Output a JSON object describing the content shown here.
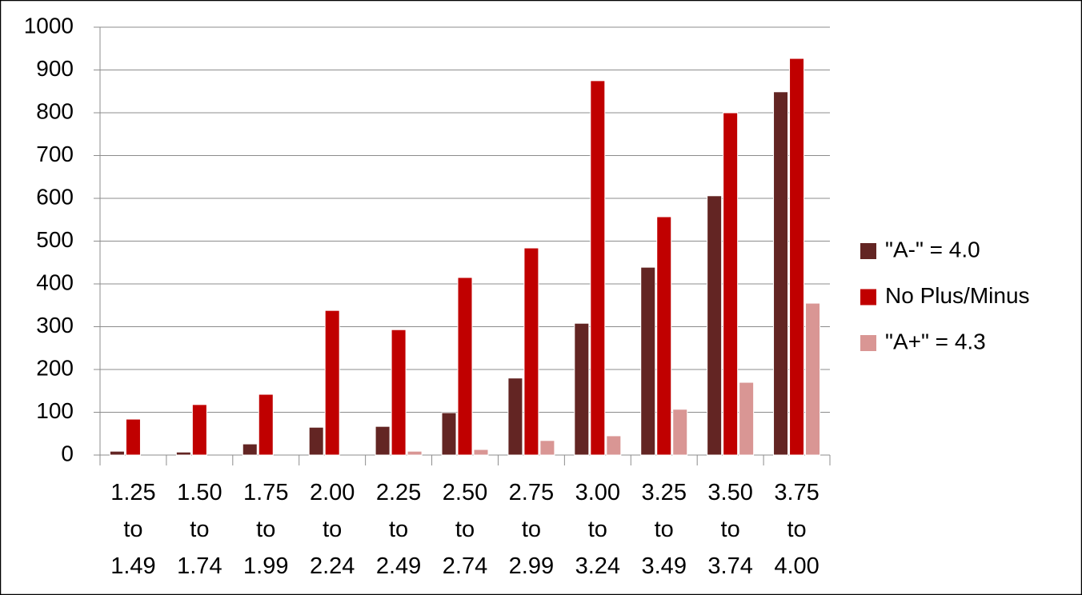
{
  "chart_data": {
    "type": "bar",
    "categories": [
      "1.25 to 1.49",
      "1.50 to 1.74",
      "1.75 to 1.99",
      "2.00 to 2.24",
      "2.25 to 2.49",
      "2.50 to 2.74",
      "2.75 to 2.99",
      "3.00 to 3.24",
      "3.25 to 3.49",
      "3.50 to 3.74",
      "3.75 to 4.00"
    ],
    "series": [
      {
        "name": "\"A-\" = 4.0",
        "color": "#632523",
        "values": [
          9,
          7,
          26,
          65,
          67,
          99,
          180,
          308,
          439,
          606,
          849
        ]
      },
      {
        "name": "No Plus/Minus",
        "color": "#c00000",
        "values": [
          84,
          118,
          142,
          338,
          293,
          415,
          484,
          875,
          557,
          800,
          927
        ]
      },
      {
        "name": "\"A+\" = 4.3",
        "color": "#d99694",
        "values": [
          0,
          0,
          0,
          0,
          9,
          13,
          34,
          45,
          107,
          170,
          355
        ]
      }
    ],
    "ylim": [
      0,
      1000
    ],
    "yticks": [
      0,
      100,
      200,
      300,
      400,
      500,
      600,
      700,
      800,
      900,
      1000
    ],
    "grid": true,
    "legend": "right"
  }
}
